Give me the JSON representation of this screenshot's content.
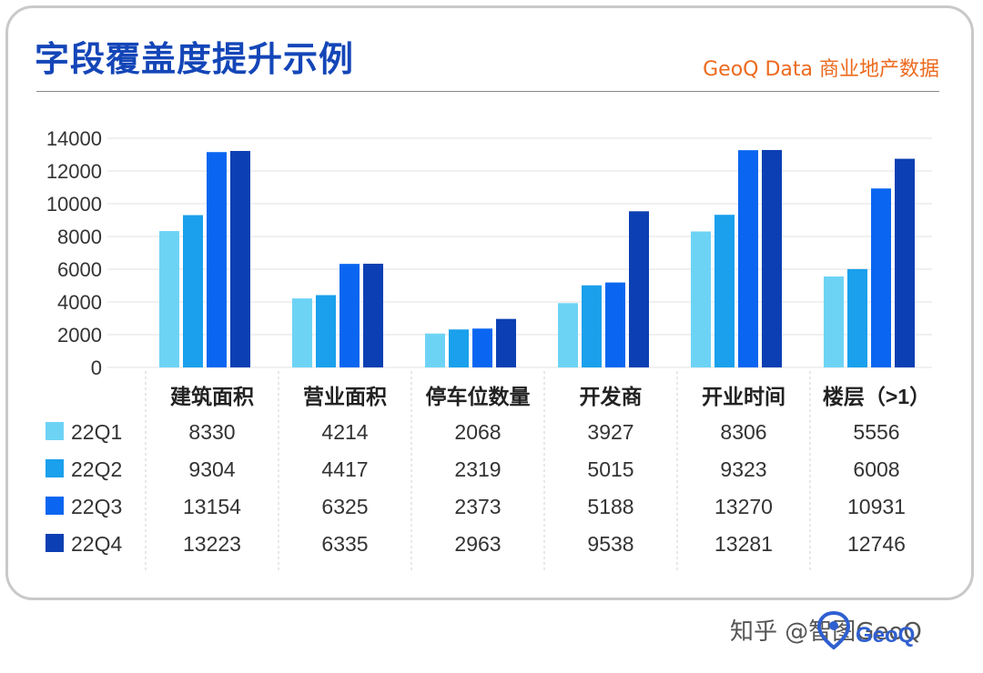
{
  "header": {
    "title": "字段覆盖度提升示例",
    "brand": "GeoQ Data 商业地产数据"
  },
  "footer": {
    "watermark_text": "知乎 @智图GeoQ"
  },
  "colors": {
    "title": "#1446b8",
    "brand": "#ec6a1d",
    "series": [
      "#6dd3f5",
      "#1aa0ec",
      "#0a66f0",
      "#0b3fb3"
    ]
  },
  "chart_data": {
    "type": "bar",
    "categories": [
      "建筑面积",
      "营业面积",
      "停车位数量",
      "开发商",
      "开业时间",
      "楼层（>1）"
    ],
    "series": [
      {
        "name": "22Q1",
        "values": [
          8330,
          4214,
          2068,
          3927,
          8306,
          5556
        ]
      },
      {
        "name": "22Q2",
        "values": [
          9304,
          4417,
          2319,
          5015,
          9323,
          6008
        ]
      },
      {
        "name": "22Q3",
        "values": [
          13154,
          6325,
          2373,
          5188,
          13270,
          10931
        ]
      },
      {
        "name": "22Q4",
        "values": [
          13223,
          6335,
          2963,
          9538,
          13281,
          12746
        ]
      }
    ],
    "yticks": [
      "0",
      "2000",
      "4000",
      "6000",
      "8000",
      "10000",
      "12000",
      "14000"
    ],
    "ylim": [
      0,
      14000
    ],
    "grid": true,
    "legend": "table-left",
    "data_table": true
  }
}
